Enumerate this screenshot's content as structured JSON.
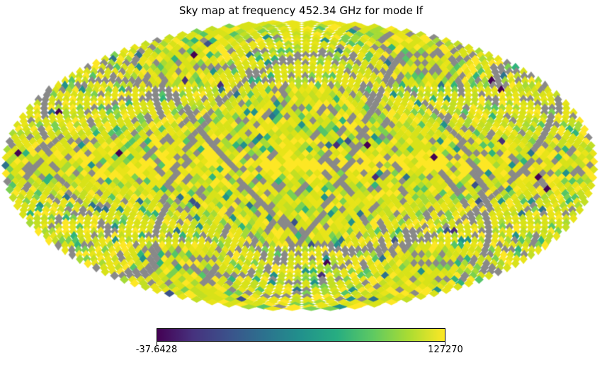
{
  "chart_data": {
    "type": "heatmap",
    "projection": "mollweide",
    "title": "Sky map at frequency 452.34 GHz for mode lf",
    "colormap": "viridis",
    "value_range": {
      "min": -37.6428,
      "max": 127270
    },
    "colorbar": {
      "min_label": "-37.6428",
      "max_label": "127270"
    },
    "background_color": "#ffffff",
    "masked_color": "#898989",
    "colorbar_gradient": [
      "#440154",
      "#46327e",
      "#3b528b",
      "#2c728e",
      "#21918c",
      "#27ad81",
      "#5ec962",
      "#aadc32",
      "#fde725"
    ],
    "pixel_palette": [
      {
        "color": "#fde725",
        "weight": 0.13
      },
      {
        "color": "#e8e419",
        "weight": 0.25
      },
      {
        "color": "#d8e219",
        "weight": 0.26
      },
      {
        "color": "#c2df23",
        "weight": 0.12
      },
      {
        "color": "#a5db36",
        "weight": 0.07
      },
      {
        "color": "#7ad151",
        "weight": 0.05
      },
      {
        "color": "#54c568",
        "weight": 0.036
      },
      {
        "color": "#2fb47c",
        "weight": 0.022
      },
      {
        "color": "#21918c",
        "weight": 0.016
      },
      {
        "color": "#2c728e",
        "weight": 0.009
      },
      {
        "color": "#3b528b",
        "weight": 0.006
      },
      {
        "color": "#462f7c",
        "weight": 0.003
      },
      {
        "color": "#440154",
        "weight": 0.003
      }
    ]
  }
}
